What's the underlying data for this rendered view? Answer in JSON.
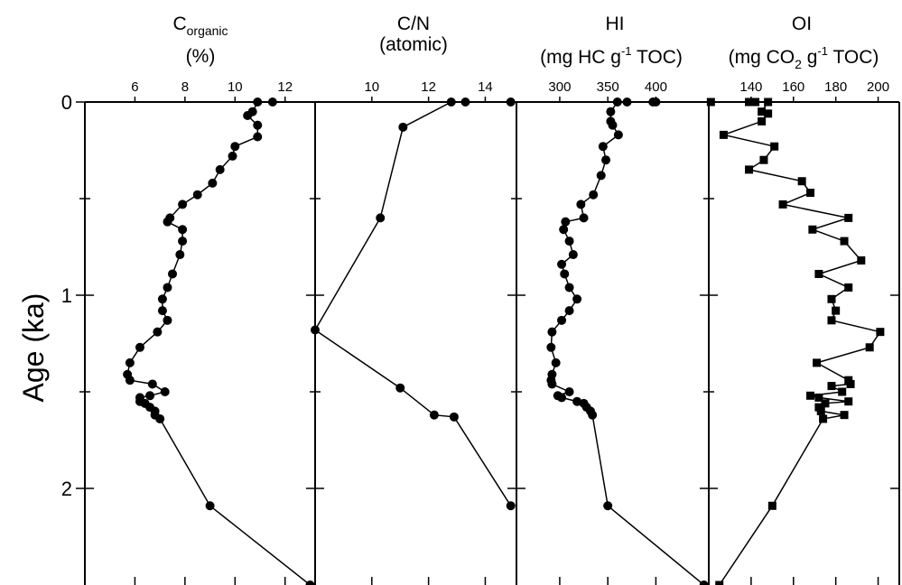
{
  "figure": {
    "y_axis_title": "Age (ka)",
    "y_tick_labels": [
      "0",
      "1",
      "2"
    ],
    "panels": [
      {
        "head_line1": "C",
        "head_line1_sub": "organic",
        "head_line2": "(%)"
      },
      {
        "head_line1": "C/N",
        "head_line2": "(atomic)"
      },
      {
        "head_line1": "HI",
        "head_line2_parts": [
          "(mg HC g",
          "-1",
          " TOC)"
        ]
      },
      {
        "head_line1": "OI",
        "head_line2_parts": [
          "(mg CO",
          "2",
          " g",
          "-1",
          " TOC)"
        ]
      }
    ]
  },
  "chart_data": [
    {
      "type": "line",
      "marker": "circle",
      "title": "Corganic (%)",
      "xlabel": "Corganic (%)",
      "ylabel": "Age (ka)",
      "xlim": [
        4,
        13.2
      ],
      "ylim": [
        0,
        2.5
      ],
      "y_reversed": true,
      "xticks": [
        6,
        8,
        10,
        12
      ],
      "yticks": [
        0,
        1,
        2
      ],
      "series": [
        {
          "x": [
            11.5,
            10.9,
            10.7,
            10.5,
            10.9,
            10.9,
            10.0,
            9.9,
            9.4,
            9.1,
            8.5,
            7.9,
            7.4,
            7.3,
            7.9,
            7.9,
            7.8,
            7.5,
            7.3,
            7.1,
            7.1,
            7.3,
            6.9,
            6.2,
            5.8,
            5.7,
            5.8,
            6.7,
            7.2,
            6.6,
            6.2,
            6.2,
            6.4,
            6.6,
            6.8,
            6.8,
            7.0,
            9.0,
            13.0
          ],
          "y": [
            0.0,
            0.0,
            0.05,
            0.07,
            0.12,
            0.18,
            0.23,
            0.28,
            0.35,
            0.42,
            0.48,
            0.53,
            0.6,
            0.62,
            0.66,
            0.72,
            0.79,
            0.89,
            0.96,
            1.02,
            1.08,
            1.13,
            1.19,
            1.27,
            1.35,
            1.41,
            1.44,
            1.46,
            1.5,
            1.52,
            1.53,
            1.55,
            1.56,
            1.58,
            1.6,
            1.62,
            1.64,
            2.09,
            2.5
          ]
        }
      ]
    },
    {
      "type": "line",
      "marker": "circle",
      "title": "C/N (atomic)",
      "xlabel": "C/N (atomic)",
      "ylabel": "Age (ka)",
      "xlim": [
        8.0,
        15.1
      ],
      "ylim": [
        0,
        2.5
      ],
      "y_reversed": true,
      "xticks": [
        10,
        12,
        14
      ],
      "yticks": [
        0,
        1,
        2
      ],
      "series": [
        {
          "x": [
            14.9,
            13.3,
            12.8,
            11.1,
            10.3,
            8.0,
            11.0,
            12.2,
            12.9,
            14.9
          ],
          "y": [
            0.0,
            0.0,
            0.0,
            0.13,
            0.6,
            1.18,
            1.48,
            1.62,
            1.63,
            2.09
          ]
        }
      ]
    },
    {
      "type": "line",
      "marker": "circle",
      "title": "HI (mg HC g-1 TOC)",
      "xlabel": "HI (mg HC g-1 TOC)",
      "ylabel": "Age (ka)",
      "xlim": [
        255,
        455
      ],
      "ylim": [
        0,
        2.5
      ],
      "y_reversed": true,
      "xticks": [
        300,
        350,
        400
      ],
      "yticks": [
        0,
        1,
        2
      ],
      "series": [
        {
          "x": [
            400,
            397,
            370,
            360,
            353,
            353,
            355,
            361,
            345,
            348,
            343,
            335,
            322,
            325,
            306,
            304,
            310,
            314,
            302,
            305,
            310,
            318,
            310,
            302,
            292,
            291,
            296,
            292,
            291,
            292,
            310,
            298,
            302,
            318,
            325,
            328,
            332,
            334,
            350,
            450
          ],
          "y": [
            0.0,
            0.0,
            0.0,
            0.0,
            0.05,
            0.1,
            0.12,
            0.17,
            0.23,
            0.3,
            0.38,
            0.48,
            0.53,
            0.6,
            0.62,
            0.66,
            0.72,
            0.79,
            0.84,
            0.89,
            0.96,
            1.02,
            1.08,
            1.13,
            1.19,
            1.27,
            1.35,
            1.41,
            1.44,
            1.46,
            1.5,
            1.52,
            1.53,
            1.55,
            1.56,
            1.58,
            1.6,
            1.62,
            2.09,
            2.5
          ]
        }
      ]
    },
    {
      "type": "line",
      "marker": "square",
      "title": "OI (mg CO2 g-1 TOC)",
      "xlabel": "OI (mg CO2 g-1 TOC)",
      "ylabel": "Age (ka)",
      "xlim": [
        120,
        210
      ],
      "ylim": [
        0,
        2.5
      ],
      "y_reversed": true,
      "xticks": [
        140,
        160,
        180,
        200
      ],
      "yticks": [
        0,
        1,
        2
      ],
      "series": [
        {
          "x": [
            121,
            139,
            142,
            148,
            145,
            148,
            145,
            127,
            151,
            146,
            139,
            164,
            168,
            155,
            186,
            169,
            184,
            192,
            172,
            186,
            178,
            180,
            178,
            201,
            196,
            171,
            186,
            187,
            178,
            183,
            168,
            172,
            186,
            175,
            172,
            173,
            184,
            174,
            150,
            125
          ],
          "y": [
            0.0,
            0.0,
            0.0,
            0.0,
            0.05,
            0.06,
            0.1,
            0.17,
            0.23,
            0.3,
            0.35,
            0.41,
            0.47,
            0.53,
            0.6,
            0.66,
            0.72,
            0.82,
            0.89,
            0.96,
            1.02,
            1.08,
            1.13,
            1.19,
            1.27,
            1.35,
            1.44,
            1.46,
            1.47,
            1.5,
            1.52,
            1.53,
            1.55,
            1.56,
            1.58,
            1.6,
            1.62,
            1.64,
            2.09,
            2.5
          ]
        }
      ]
    }
  ]
}
